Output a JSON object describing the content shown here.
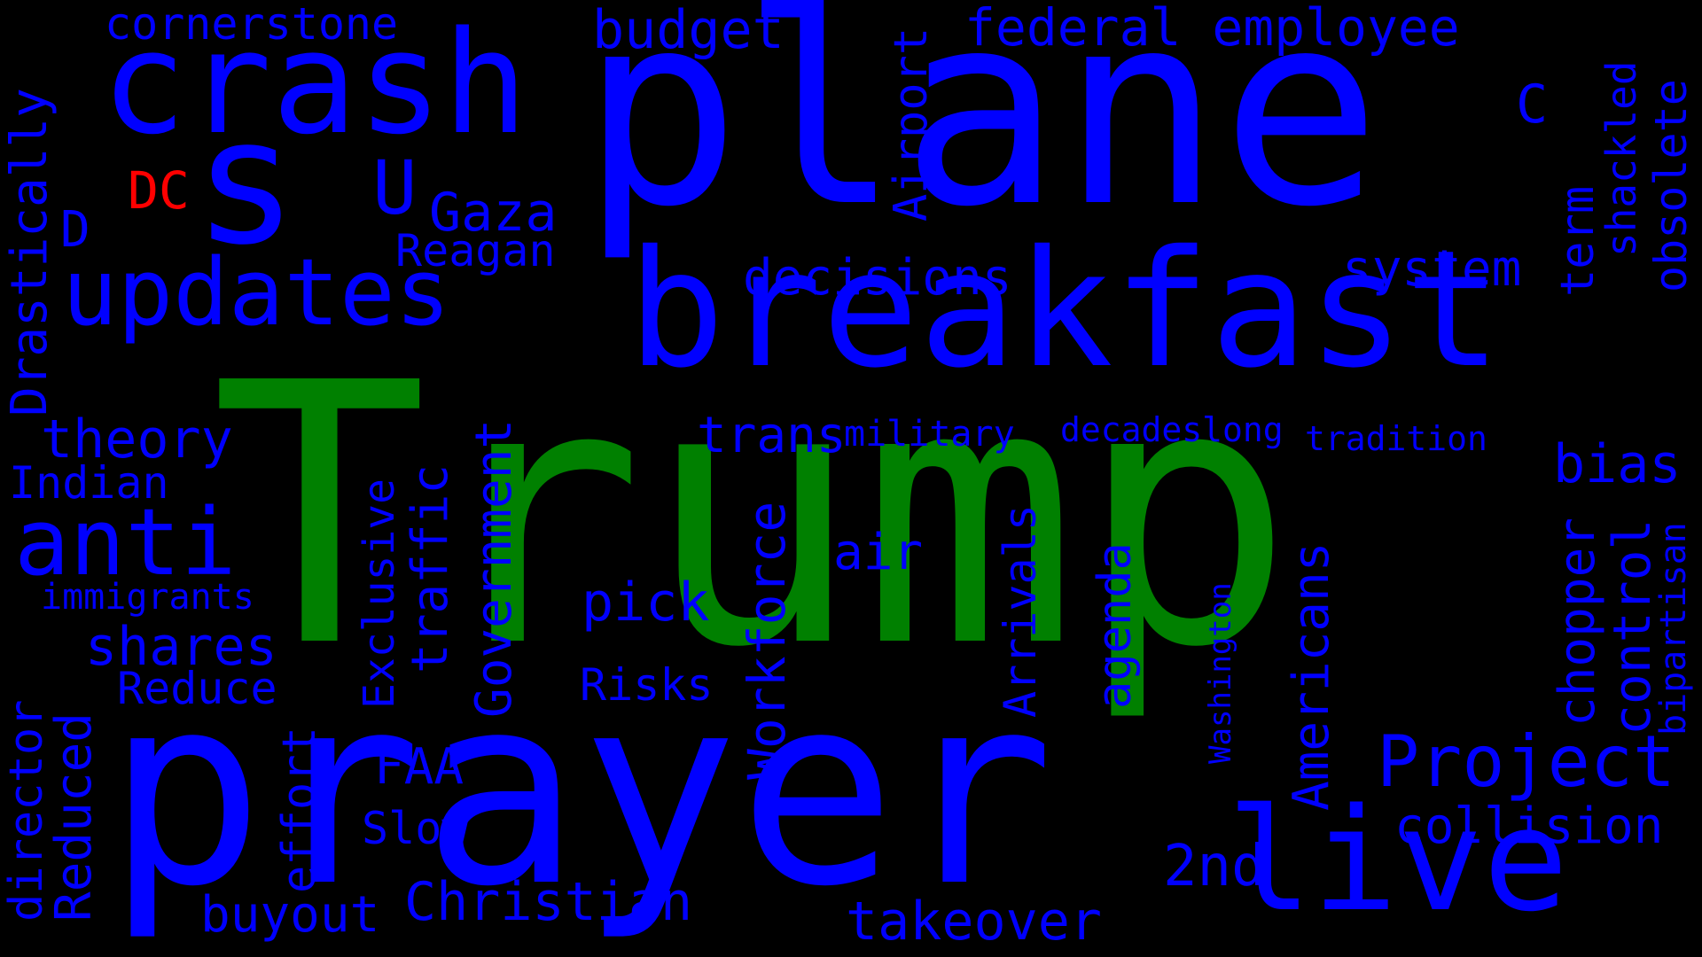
{
  "colors": {
    "background": "#000000",
    "blue": "#0000ff",
    "green": "#008000",
    "red": "#ff0000"
  },
  "words": [
    {
      "text": "Trump",
      "color": "green"
    },
    {
      "text": "plane",
      "color": "blue"
    },
    {
      "text": "prayer",
      "color": "blue"
    },
    {
      "text": "breakfast",
      "color": "blue"
    },
    {
      "text": "crash",
      "color": "blue"
    },
    {
      "text": "s",
      "color": "blue"
    },
    {
      "text": "updates",
      "color": "blue"
    },
    {
      "text": "live",
      "color": "blue"
    },
    {
      "text": "anti",
      "color": "blue"
    },
    {
      "text": "Project",
      "color": "blue"
    },
    {
      "text": "Christian",
      "color": "blue"
    },
    {
      "text": "takeover",
      "color": "blue"
    },
    {
      "text": "collision",
      "color": "blue"
    },
    {
      "text": "2nd",
      "color": "blue"
    },
    {
      "text": "U",
      "color": "blue"
    },
    {
      "text": "Gaza",
      "color": "blue"
    },
    {
      "text": "Reagan",
      "color": "blue"
    },
    {
      "text": "budget",
      "color": "blue"
    },
    {
      "text": "cornerstone",
      "color": "blue"
    },
    {
      "text": "federal employee",
      "color": "blue"
    },
    {
      "text": "decisions",
      "color": "blue"
    },
    {
      "text": "system",
      "color": "blue"
    },
    {
      "text": "C",
      "color": "blue"
    },
    {
      "text": "DC",
      "color": "red"
    },
    {
      "text": "D",
      "color": "blue"
    },
    {
      "text": "theory",
      "color": "blue"
    },
    {
      "text": "Indian",
      "color": "blue"
    },
    {
      "text": "immigrants",
      "color": "blue"
    },
    {
      "text": "shares",
      "color": "blue"
    },
    {
      "text": "Reduce",
      "color": "blue"
    },
    {
      "text": "FAA",
      "color": "blue"
    },
    {
      "text": "Slow",
      "color": "blue"
    },
    {
      "text": "buyout",
      "color": "blue"
    },
    {
      "text": "pick",
      "color": "blue"
    },
    {
      "text": "Risks",
      "color": "blue"
    },
    {
      "text": "air",
      "color": "blue"
    },
    {
      "text": "trans",
      "color": "blue"
    },
    {
      "text": "military",
      "color": "blue"
    },
    {
      "text": "decadeslong",
      "color": "blue"
    },
    {
      "text": "tradition",
      "color": "blue"
    },
    {
      "text": "bias",
      "color": "blue"
    },
    {
      "text": "Drastically",
      "color": "blue"
    },
    {
      "text": "Airport",
      "color": "blue"
    },
    {
      "text": "term",
      "color": "blue"
    },
    {
      "text": "shackled",
      "color": "blue"
    },
    {
      "text": "obsolete",
      "color": "blue"
    },
    {
      "text": "Exclusive",
      "color": "blue"
    },
    {
      "text": "traffic",
      "color": "blue"
    },
    {
      "text": "Government",
      "color": "blue"
    },
    {
      "text": "Workforce",
      "color": "blue"
    },
    {
      "text": "Arrivals",
      "color": "blue"
    },
    {
      "text": "agenda",
      "color": "blue"
    },
    {
      "text": "Americans",
      "color": "blue"
    },
    {
      "text": "Washington",
      "color": "blue"
    },
    {
      "text": "chopper",
      "color": "blue"
    },
    {
      "text": "control",
      "color": "blue"
    },
    {
      "text": "bipartisan",
      "color": "blue"
    },
    {
      "text": "director",
      "color": "blue"
    },
    {
      "text": "Reduced",
      "color": "blue"
    },
    {
      "text": "effort",
      "color": "blue"
    }
  ]
}
